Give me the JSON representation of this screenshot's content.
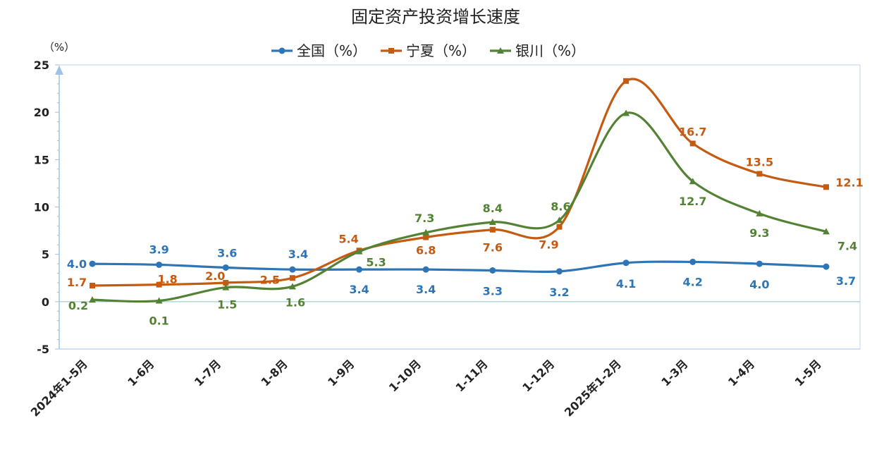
{
  "chart_data": {
    "type": "line",
    "title": "固定资产投资增长速度",
    "y_unit_label": "（%）",
    "categories": [
      "2024年1-5月",
      "1-6月",
      "1-7月",
      "1-8月",
      "1-9月",
      "1-10月",
      "1-11月",
      "1-12月",
      "2025年1-2月",
      "1-3月",
      "1-4月",
      "1-5月"
    ],
    "ylim": [
      -5,
      25
    ],
    "yticks": [
      -5,
      0,
      5,
      10,
      15,
      20,
      25
    ],
    "grid": false,
    "legend_position": "top-center",
    "smooth": true,
    "series": [
      {
        "name": "全国（%）",
        "color": "#2e75b6",
        "marker": "circle",
        "values": [
          4.0,
          3.9,
          3.6,
          3.4,
          3.4,
          3.4,
          3.3,
          3.2,
          4.1,
          4.2,
          4.0,
          3.7
        ],
        "labels": [
          "4.0",
          "3.9",
          "3.6",
          "3.4",
          "3.4",
          "3.4",
          "3.3",
          "3.2",
          "4.1",
          "4.2",
          "4.0",
          "3.7"
        ]
      },
      {
        "name": "宁夏（%）",
        "color": "#c55a11",
        "marker": "square",
        "values": [
          1.7,
          1.8,
          2.0,
          2.5,
          5.4,
          6.8,
          7.6,
          7.9,
          23.3,
          16.7,
          13.5,
          12.1
        ],
        "labels": [
          "1.7",
          "1.8",
          "2.0",
          "2.5",
          "5.4",
          "6.8",
          "7.6",
          "7.9",
          "",
          "16.7",
          "13.5",
          "12.1"
        ]
      },
      {
        "name": "银川（%）",
        "color": "#548235",
        "marker": "triangle",
        "values": [
          0.2,
          0.1,
          1.5,
          1.6,
          5.3,
          7.3,
          8.4,
          8.6,
          19.9,
          12.7,
          9.3,
          7.4
        ],
        "labels": [
          "0.2",
          "0.1",
          "1.5",
          "1.6",
          "5.3",
          "7.3",
          "8.4",
          "8.6",
          "",
          "12.7",
          "9.3",
          "7.4"
        ]
      }
    ]
  }
}
